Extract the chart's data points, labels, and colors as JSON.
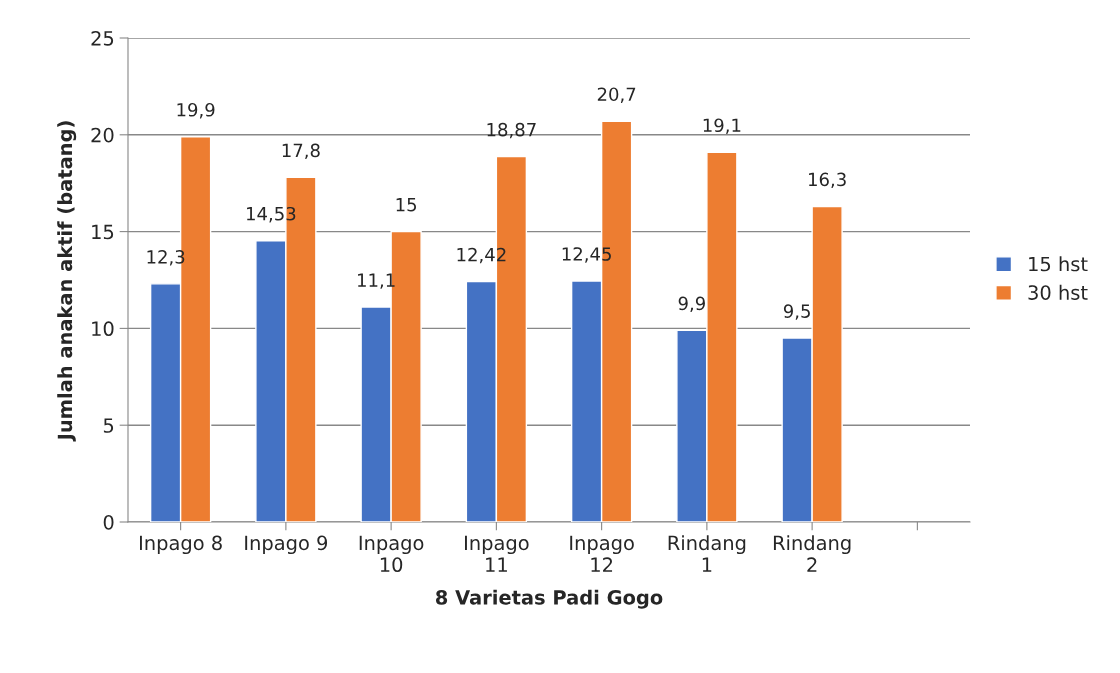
{
  "chart_data": {
    "type": "bar",
    "xlabel": "8 Varietas Padi Gogo",
    "ylabel": "Jumlah anakan aktif (batang)",
    "categories": [
      "Inpago 8",
      "Inpago 9",
      "Inpago\n10",
      "Inpago\n11",
      "Inpago\n12",
      "Rindang\n1",
      "Rindang\n2",
      null
    ],
    "series": [
      {
        "name": "15 hst",
        "color": "#4472c4",
        "values": [
          12.3,
          14.53,
          11.1,
          12.42,
          12.45,
          9.9,
          9.5,
          null
        ],
        "value_labels": [
          "12,3",
          "14,53",
          "11,1",
          "12,42",
          "12,45",
          "9,9",
          "9,5",
          null
        ]
      },
      {
        "name": "30 hst",
        "color": "#ed7d31",
        "values": [
          19.9,
          17.8,
          15,
          18.87,
          20.7,
          19.1,
          16.3,
          null
        ],
        "value_labels": [
          "19,9",
          "17,8",
          "15",
          "18,87",
          "20,7",
          "19,1",
          "16,3",
          null
        ]
      }
    ],
    "ylim": [
      0,
      25
    ],
    "yticks": [
      0,
      5,
      10,
      15,
      20,
      25
    ],
    "grid": "y",
    "legend": "right"
  }
}
